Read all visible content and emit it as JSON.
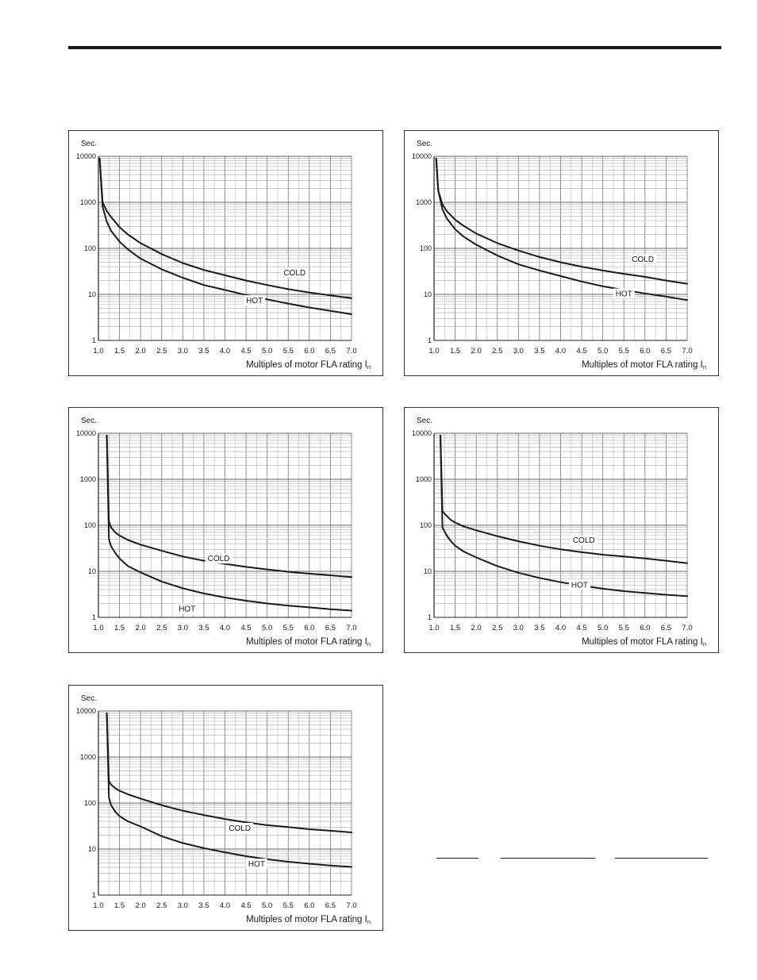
{
  "chart_data": [
    {
      "type": "line",
      "y_unit_label": "Sec.",
      "xlabel": "Multiples of motor FLA rating I",
      "xlabel_subscript": "n",
      "x_ticks": [
        "1.0",
        "1.5",
        "2.0",
        "2.5",
        "3.0",
        "3.5",
        "4.0",
        "4.5",
        "5.0",
        "5.5",
        "6.0",
        "6.5",
        "7.0"
      ],
      "y_ticks": [
        "1",
        "10",
        "100",
        "1000",
        "10000"
      ],
      "xlim": [
        1.0,
        7.0
      ],
      "ylim": [
        1,
        10000
      ],
      "y_scale": "log",
      "grid": true,
      "series": [
        {
          "name": "COLD",
          "x": [
            1.03,
            1.1,
            1.2,
            1.3,
            1.5,
            1.7,
            2.0,
            2.5,
            3.0,
            3.5,
            4.0,
            4.5,
            5.0,
            5.5,
            6.0,
            6.5,
            7.0
          ],
          "y": [
            9000,
            1000,
            650,
            480,
            290,
            200,
            130,
            75,
            48,
            34,
            26,
            20,
            16,
            13,
            11,
            9.5,
            8.3
          ]
        },
        {
          "name": "HOT",
          "x": [
            1.03,
            1.1,
            1.2,
            1.3,
            1.5,
            1.7,
            2.0,
            2.5,
            3.0,
            3.5,
            4.0,
            4.5,
            5.0,
            5.5,
            6.0,
            6.5,
            7.0
          ],
          "y": [
            9000,
            800,
            380,
            240,
            140,
            95,
            60,
            35,
            23,
            16,
            12.5,
            9.7,
            7.8,
            6.3,
            5.2,
            4.4,
            3.7
          ]
        }
      ],
      "annotations": [
        "COLD",
        "HOT"
      ]
    },
    {
      "type": "line",
      "y_unit_label": "Sec.",
      "xlabel": "Multiples of motor FLA rating I",
      "xlabel_subscript": "n",
      "x_ticks": [
        "1.0",
        "1.5",
        "2.0",
        "2.5",
        "3.0",
        "3.5",
        "4.0",
        "4.5",
        "5.0",
        "5.5",
        "6.0",
        "6.5",
        "7.0"
      ],
      "y_ticks": [
        "1",
        "10",
        "100",
        "1000",
        "10000"
      ],
      "xlim": [
        1.0,
        7.0
      ],
      "ylim": [
        1,
        10000
      ],
      "y_scale": "log",
      "grid": true,
      "series": [
        {
          "name": "COLD",
          "x": [
            1.05,
            1.1,
            1.2,
            1.3,
            1.5,
            1.7,
            2.0,
            2.5,
            3.0,
            3.5,
            4.0,
            4.5,
            5.0,
            5.5,
            6.0,
            6.5,
            7.0
          ],
          "y": [
            9000,
            1800,
            900,
            650,
            420,
            310,
            210,
            130,
            90,
            65,
            50,
            40,
            33,
            28,
            24,
            20,
            17
          ]
        },
        {
          "name": "HOT",
          "x": [
            1.05,
            1.1,
            1.2,
            1.3,
            1.5,
            1.7,
            2.0,
            2.5,
            3.0,
            3.5,
            4.0,
            4.5,
            5.0,
            5.5,
            6.0,
            6.5,
            7.0
          ],
          "y": [
            9000,
            1800,
            700,
            450,
            260,
            180,
            120,
            70,
            45,
            33,
            25,
            19,
            15,
            12.5,
            10.5,
            9,
            7.5
          ]
        }
      ],
      "annotations": [
        "COLD",
        "HOT"
      ]
    },
    {
      "type": "line",
      "y_unit_label": "Sec.",
      "xlabel": "Multiples of motor FLA rating I",
      "xlabel_subscript": "n",
      "x_ticks": [
        "1.0",
        "1.5",
        "2.0",
        "2.5",
        "3.0",
        "3.5",
        "4.0",
        "4.5",
        "5.0",
        "5.5",
        "6.0",
        "6.5",
        "7.0"
      ],
      "y_ticks": [
        "1",
        "10",
        "100",
        "1000",
        "10000"
      ],
      "xlim": [
        1.0,
        7.0
      ],
      "ylim": [
        1,
        10000
      ],
      "y_scale": "log",
      "grid": true,
      "series": [
        {
          "name": "COLD",
          "x": [
            1.2,
            1.25,
            1.3,
            1.4,
            1.5,
            1.7,
            2.0,
            2.5,
            3.0,
            3.5,
            4.0,
            4.5,
            5.0,
            5.5,
            6.0,
            6.5,
            7.0
          ],
          "y": [
            9000,
            120,
            90,
            70,
            60,
            48,
            38,
            28,
            21,
            17,
            14.5,
            12.5,
            11,
            9.8,
            8.9,
            8.2,
            7.5
          ]
        },
        {
          "name": "HOT",
          "x": [
            1.2,
            1.25,
            1.3,
            1.4,
            1.5,
            1.7,
            2.0,
            2.5,
            3.0,
            3.5,
            4.0,
            4.5,
            5.0,
            5.5,
            6.0,
            6.5,
            7.0
          ],
          "y": [
            9000,
            50,
            35,
            25,
            19,
            13,
            9.5,
            6,
            4.3,
            3.3,
            2.7,
            2.3,
            2.0,
            1.8,
            1.65,
            1.5,
            1.4
          ]
        }
      ],
      "annotations": [
        "COLD",
        "HOT"
      ]
    },
    {
      "type": "line",
      "y_unit_label": "Sec.",
      "xlabel": "Multiples of motor FLA rating I",
      "xlabel_subscript": "n",
      "x_ticks": [
        "1.0",
        "1.5",
        "2.0",
        "2.5",
        "3.0",
        "3.5",
        "4.0",
        "4.5",
        "5.0",
        "5.5",
        "6.0",
        "6.5",
        "7.0"
      ],
      "y_ticks": [
        "1",
        "10",
        "100",
        "1000",
        "10000"
      ],
      "xlim": [
        1.0,
        7.0
      ],
      "ylim": [
        1,
        10000
      ],
      "y_scale": "log",
      "grid": true,
      "series": [
        {
          "name": "COLD",
          "x": [
            1.15,
            1.2,
            1.3,
            1.4,
            1.5,
            1.7,
            2.0,
            2.5,
            3.0,
            3.5,
            4.0,
            4.5,
            5.0,
            5.5,
            6.0,
            6.5,
            7.0
          ],
          "y": [
            9000,
            200,
            160,
            130,
            115,
            95,
            78,
            58,
            45,
            36,
            30,
            26,
            23,
            21,
            19,
            17,
            15
          ]
        },
        {
          "name": "HOT",
          "x": [
            1.15,
            1.2,
            1.3,
            1.4,
            1.5,
            1.7,
            2.0,
            2.5,
            3.0,
            3.5,
            4.0,
            4.5,
            5.0,
            5.5,
            6.0,
            6.5,
            7.0
          ],
          "y": [
            9000,
            90,
            60,
            45,
            36,
            27,
            20,
            13,
            9.3,
            7.2,
            5.8,
            4.9,
            4.2,
            3.7,
            3.4,
            3.1,
            2.9
          ]
        }
      ],
      "annotations": [
        "COLD",
        "HOT"
      ]
    },
    {
      "type": "line",
      "y_unit_label": "Sec.",
      "xlabel": "Multiples of motor FLA rating I",
      "xlabel_subscript": "n",
      "x_ticks": [
        "1.0",
        "1.5",
        "2.0",
        "2.5",
        "3.0",
        "3.5",
        "4.0",
        "4.5",
        "5.0",
        "5.5",
        "6.0",
        "6.5",
        "7.0"
      ],
      "y_ticks": [
        "1",
        "10",
        "100",
        "1000",
        "10000"
      ],
      "xlim": [
        1.0,
        7.0
      ],
      "ylim": [
        1,
        10000
      ],
      "y_scale": "log",
      "grid": true,
      "series": [
        {
          "name": "COLD",
          "x": [
            1.2,
            1.25,
            1.3,
            1.4,
            1.5,
            1.7,
            2.0,
            2.5,
            3.0,
            3.5,
            4.0,
            4.5,
            5.0,
            5.5,
            6.0,
            6.5,
            7.0
          ],
          "y": [
            9000,
            300,
            250,
            210,
            185,
            155,
            125,
            90,
            68,
            55,
            45,
            38,
            33,
            30,
            27,
            25,
            23
          ]
        },
        {
          "name": "HOT",
          "x": [
            1.2,
            1.25,
            1.3,
            1.4,
            1.5,
            1.7,
            2.0,
            2.5,
            3.0,
            3.5,
            4.0,
            4.5,
            5.0,
            5.5,
            6.0,
            6.5,
            7.0
          ],
          "y": [
            9000,
            130,
            90,
            65,
            52,
            40,
            31,
            19,
            13.5,
            10.5,
            8.5,
            7,
            6,
            5.3,
            4.8,
            4.4,
            4.1
          ]
        }
      ],
      "annotations": [
        "COLD",
        "HOT"
      ]
    }
  ]
}
